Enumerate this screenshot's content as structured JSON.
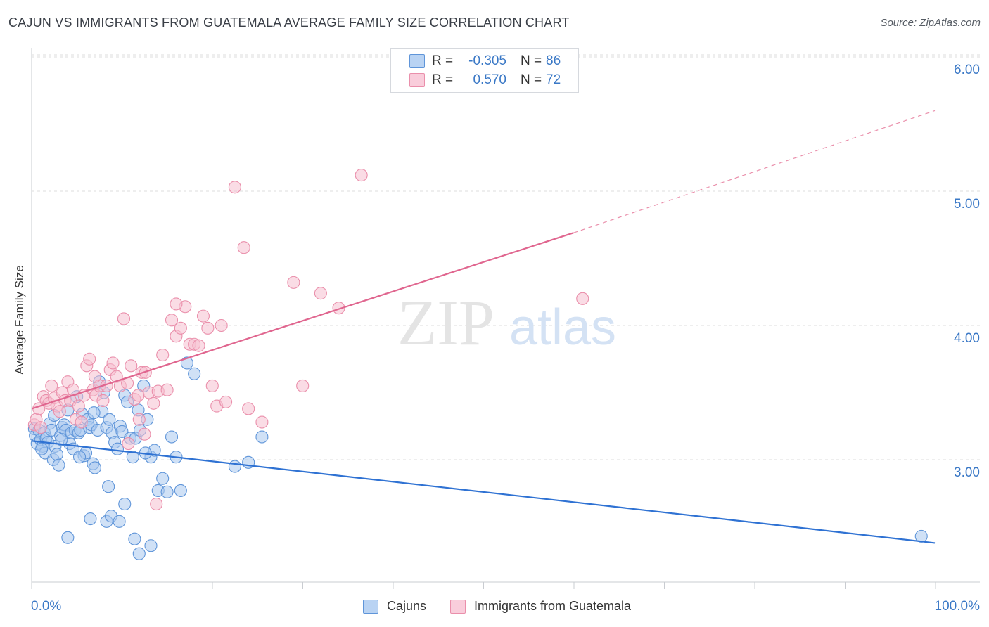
{
  "title": "CAJUN VS IMMIGRANTS FROM GUATEMALA AVERAGE FAMILY SIZE CORRELATION CHART",
  "source": "Source: ZipAtlas.com",
  "watermark": {
    "zip": "ZIP",
    "atlas": "atlas"
  },
  "colors": {
    "blue_fill": "#a9c8ef",
    "blue_stroke": "#5f95d9",
    "blue_line": "#2f72d3",
    "pink_fill": "#f6bfd0",
    "pink_stroke": "#ea8fab",
    "pink_line": "#e0668f",
    "axis_text": "#3a78c6",
    "grid": "#dddddd"
  },
  "legend": {
    "rows": [
      {
        "r_label": "R =",
        "r_value": "-0.305",
        "n_label": "N =",
        "n_value": "86"
      },
      {
        "r_label": "R =",
        "r_value": "0.570",
        "n_label": "N =",
        "n_value": "72"
      }
    ]
  },
  "chart_data": {
    "type": "scatter",
    "title": "CAJUN VS IMMIGRANTS FROM GUATEMALA AVERAGE FAMILY SIZE CORRELATION CHART",
    "xlabel": "",
    "ylabel": "Average Family Size",
    "xlim": [
      0,
      100
    ],
    "ylim": [
      2.1,
      6.1
    ],
    "x_tick_labels": [
      "0.0%",
      "100.0%"
    ],
    "y_ticks": [
      3.0,
      4.0,
      5.0,
      6.0
    ],
    "y_tick_labels": [
      "3.00",
      "4.00",
      "5.00",
      "6.00"
    ],
    "grid": true,
    "legend_position": "bottom",
    "series": [
      {
        "name": "Cajuns",
        "color": "#5f95d9",
        "trend": {
          "x": [
            0,
            100
          ],
          "y": [
            3.14,
            2.38
          ]
        },
        "points": [
          [
            0.3,
            3.23
          ],
          [
            0.4,
            3.18
          ],
          [
            0.6,
            3.12
          ],
          [
            0.8,
            3.22
          ],
          [
            1.0,
            3.15
          ],
          [
            1.2,
            3.1
          ],
          [
            1.4,
            3.2
          ],
          [
            1.5,
            3.05
          ],
          [
            1.6,
            3.16
          ],
          [
            1.8,
            3.13
          ],
          [
            2.0,
            3.27
          ],
          [
            2.2,
            3.22
          ],
          [
            2.4,
            3.0
          ],
          [
            2.6,
            3.1
          ],
          [
            2.8,
            3.04
          ],
          [
            3.0,
            2.96
          ],
          [
            3.2,
            3.18
          ],
          [
            3.4,
            3.24
          ],
          [
            3.6,
            3.26
          ],
          [
            3.8,
            3.22
          ],
          [
            4.0,
            3.37
          ],
          [
            4.2,
            3.12
          ],
          [
            4.4,
            3.2
          ],
          [
            4.6,
            3.08
          ],
          [
            4.8,
            3.22
          ],
          [
            5.0,
            3.47
          ],
          [
            5.2,
            3.2
          ],
          [
            5.4,
            3.22
          ],
          [
            5.6,
            3.34
          ],
          [
            5.8,
            3.03
          ],
          [
            6.0,
            3.05
          ],
          [
            6.2,
            3.3
          ],
          [
            6.4,
            3.24
          ],
          [
            6.6,
            3.26
          ],
          [
            6.8,
            2.97
          ],
          [
            7.0,
            2.94
          ],
          [
            7.3,
            3.22
          ],
          [
            7.5,
            3.58
          ],
          [
            7.8,
            3.36
          ],
          [
            8.0,
            3.5
          ],
          [
            8.3,
            3.24
          ],
          [
            8.6,
            3.3
          ],
          [
            8.9,
            3.2
          ],
          [
            9.2,
            3.13
          ],
          [
            9.5,
            3.08
          ],
          [
            9.8,
            3.25
          ],
          [
            10.0,
            3.21
          ],
          [
            10.3,
            3.48
          ],
          [
            10.6,
            3.43
          ],
          [
            10.9,
            3.16
          ],
          [
            11.2,
            3.02
          ],
          [
            11.5,
            3.16
          ],
          [
            11.8,
            3.37
          ],
          [
            12.0,
            3.22
          ],
          [
            12.4,
            3.55
          ],
          [
            12.8,
            3.3
          ],
          [
            13.2,
            3.02
          ],
          [
            13.6,
            3.07
          ],
          [
            14.0,
            2.77
          ],
          [
            14.5,
            2.86
          ],
          [
            15.0,
            2.76
          ],
          [
            15.5,
            3.17
          ],
          [
            16.0,
            3.02
          ],
          [
            16.5,
            2.77
          ],
          [
            17.2,
            3.72
          ],
          [
            18.0,
            3.64
          ],
          [
            22.5,
            2.95
          ],
          [
            24.0,
            2.98
          ],
          [
            25.5,
            3.17
          ],
          [
            4.0,
            2.42
          ],
          [
            6.5,
            2.56
          ],
          [
            8.3,
            2.54
          ],
          [
            8.8,
            2.58
          ],
          [
            9.7,
            2.54
          ],
          [
            10.3,
            2.67
          ],
          [
            11.4,
            2.41
          ],
          [
            11.9,
            2.3
          ],
          [
            13.2,
            2.36
          ],
          [
            8.5,
            2.8
          ],
          [
            98.5,
            2.43
          ],
          [
            1.1,
            3.08
          ],
          [
            2.5,
            3.33
          ],
          [
            3.3,
            3.15
          ],
          [
            5.3,
            3.02
          ],
          [
            6.9,
            3.35
          ],
          [
            12.6,
            3.05
          ]
        ]
      },
      {
        "name": "Immigrants from Guatemala",
        "color": "#ea8fab",
        "trend": {
          "x": [
            0,
            60
          ],
          "y": [
            3.38,
            4.69
          ],
          "x_dashed": [
            60,
            100
          ],
          "y_dashed": [
            4.69,
            5.6
          ]
        },
        "points": [
          [
            0.3,
            3.26
          ],
          [
            0.5,
            3.3
          ],
          [
            0.8,
            3.38
          ],
          [
            1.0,
            3.24
          ],
          [
            1.3,
            3.47
          ],
          [
            1.6,
            3.44
          ],
          [
            1.9,
            3.42
          ],
          [
            2.2,
            3.55
          ],
          [
            2.5,
            3.46
          ],
          [
            2.8,
            3.4
          ],
          [
            3.1,
            3.36
          ],
          [
            3.4,
            3.5
          ],
          [
            3.7,
            3.44
          ],
          [
            4.0,
            3.58
          ],
          [
            4.3,
            3.44
          ],
          [
            4.6,
            3.52
          ],
          [
            4.9,
            3.3
          ],
          [
            5.2,
            3.4
          ],
          [
            5.5,
            3.28
          ],
          [
            5.8,
            3.48
          ],
          [
            6.1,
            3.7
          ],
          [
            6.4,
            3.75
          ],
          [
            6.8,
            3.52
          ],
          [
            7.1,
            3.48
          ],
          [
            7.5,
            3.55
          ],
          [
            7.9,
            3.44
          ],
          [
            8.3,
            3.55
          ],
          [
            8.7,
            3.67
          ],
          [
            9.0,
            3.72
          ],
          [
            9.4,
            3.62
          ],
          [
            9.8,
            3.55
          ],
          [
            10.2,
            4.05
          ],
          [
            10.6,
            3.57
          ],
          [
            11.0,
            3.7
          ],
          [
            11.4,
            3.45
          ],
          [
            11.8,
            3.48
          ],
          [
            12.2,
            3.65
          ],
          [
            12.6,
            3.65
          ],
          [
            13.0,
            3.5
          ],
          [
            13.5,
            3.42
          ],
          [
            14.0,
            3.51
          ],
          [
            14.5,
            3.78
          ],
          [
            15.0,
            3.52
          ],
          [
            15.5,
            4.04
          ],
          [
            16.0,
            3.92
          ],
          [
            16.5,
            3.98
          ],
          [
            17.0,
            4.14
          ],
          [
            17.5,
            3.86
          ],
          [
            18.0,
            3.86
          ],
          [
            18.5,
            3.85
          ],
          [
            19.0,
            4.07
          ],
          [
            19.5,
            3.98
          ],
          [
            20.0,
            3.55
          ],
          [
            20.5,
            3.4
          ],
          [
            21.0,
            4.0
          ],
          [
            21.5,
            3.43
          ],
          [
            22.5,
            5.03
          ],
          [
            23.5,
            4.58
          ],
          [
            24.0,
            3.38
          ],
          [
            25.5,
            3.28
          ],
          [
            29.0,
            4.32
          ],
          [
            30.0,
            3.55
          ],
          [
            32.0,
            4.24
          ],
          [
            34.0,
            4.13
          ],
          [
            36.5,
            5.12
          ],
          [
            61.0,
            4.2
          ],
          [
            16.0,
            4.16
          ],
          [
            10.7,
            3.12
          ],
          [
            12.5,
            3.19
          ],
          [
            13.8,
            2.67
          ],
          [
            7.0,
            3.62
          ],
          [
            11.9,
            3.3
          ]
        ]
      }
    ]
  }
}
